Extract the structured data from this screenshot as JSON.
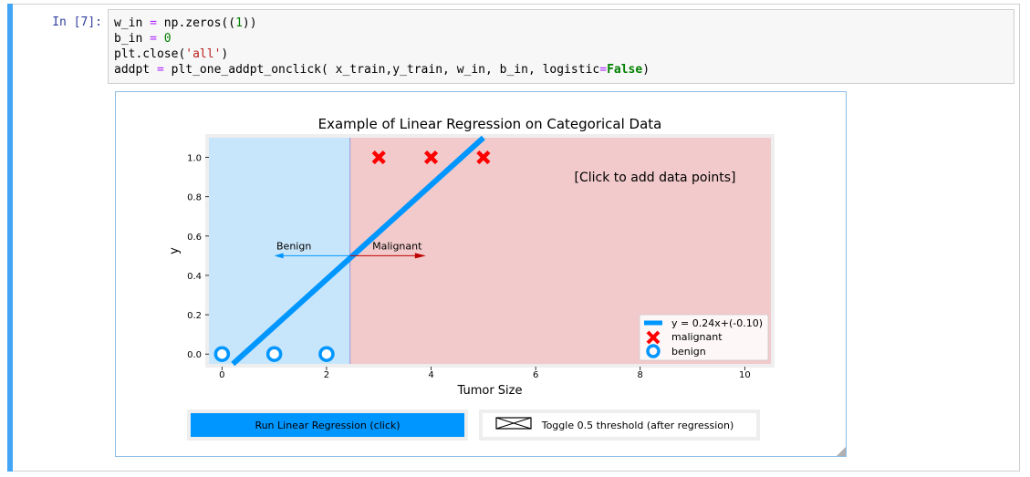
{
  "cell": {
    "prompt": "In [7]:",
    "code_lines": [
      "w_in = np.zeros((1))",
      "b_in = 0",
      "plt.close('all')",
      "addpt = plt_one_addpt_onclick( x_train,y_train, w_in, b_in, logistic=False)"
    ]
  },
  "chart_data": {
    "type": "scatter",
    "title": "Example of Linear Regression on Categorical Data",
    "xlabel": "Tumor Size",
    "ylabel": "y",
    "xlim": [
      -0.25,
      10.5
    ],
    "ylim": [
      -0.05,
      1.1
    ],
    "x_ticks": [
      "0",
      "2",
      "4",
      "6",
      "8",
      "10"
    ],
    "x_tick_values": [
      0,
      2,
      4,
      6,
      8,
      10
    ],
    "y_ticks": [
      "0.0",
      "0.2",
      "0.4",
      "0.6",
      "0.8",
      "1.0"
    ],
    "y_tick_values": [
      0.0,
      0.2,
      0.4,
      0.6,
      0.8,
      1.0
    ],
    "threshold_x": 2.45,
    "benign_region_color": "#c8e6fb",
    "malignant_region_color": "#f2cacb",
    "line": {
      "label": "y = 0.24x+(-0.10)",
      "slope": 0.24,
      "intercept": -0.1,
      "color": "#0096ff"
    },
    "malignant": {
      "label": "malignant",
      "x": [
        3,
        4,
        5
      ],
      "y": [
        1,
        1,
        1
      ],
      "color": "#ff0000"
    },
    "benign": {
      "label": "benign",
      "x": [
        0,
        1,
        2
      ],
      "y": [
        0,
        0,
        0
      ],
      "color": "#0096ff"
    },
    "annotations": {
      "click_hint": "[Click to add data points]",
      "benign_label": "Benign",
      "malignant_label": "Malignant",
      "arrow_y": 0.5,
      "benign_arrow_end": 1.0,
      "malignant_arrow_end": 3.9
    },
    "legend_position": "lower-right"
  },
  "buttons": {
    "run_label": "Run Linear Regression (click)",
    "toggle_label": "Toggle 0.5 threshold (after regression)"
  }
}
